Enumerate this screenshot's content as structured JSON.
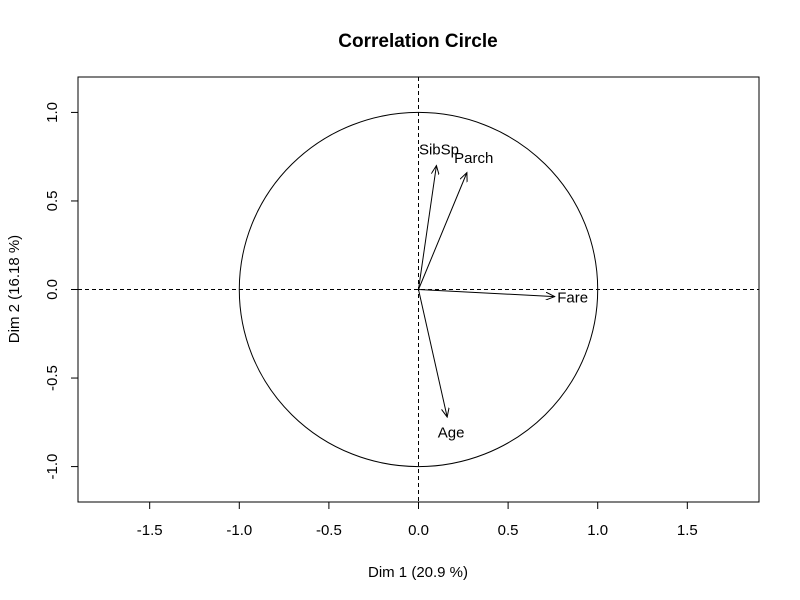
{
  "chart_data": {
    "type": "scatter",
    "title": "Correlation Circle",
    "xlabel": "Dim 1 (20.9 %)",
    "ylabel": "Dim 2 (16.18 %)",
    "xlim": [
      -1.9,
      1.9
    ],
    "ylim": [
      -1.2,
      1.2
    ],
    "xticks": [
      -1.5,
      -1.0,
      -0.5,
      0.0,
      0.5,
      1.0,
      1.5
    ],
    "xtick_labels": [
      "-1.5",
      "-1.0",
      "-0.5",
      "0.0",
      "0.5",
      "1.0",
      "1.5"
    ],
    "yticks": [
      -1.0,
      -0.5,
      0.0,
      0.5,
      1.0
    ],
    "ytick_labels": [
      "-1.0",
      "-0.5",
      "0.0",
      "0.5",
      "1.0"
    ],
    "grid": false,
    "circle_radius": 1.0,
    "reference_lines": [
      0,
      0
    ],
    "variables": [
      {
        "name": "SibSp",
        "x": 0.1,
        "y": 0.7
      },
      {
        "name": "Parch",
        "x": 0.27,
        "y": 0.66
      },
      {
        "name": "Fare",
        "x": 0.76,
        "y": -0.04
      },
      {
        "name": "Age",
        "x": 0.16,
        "y": -0.72
      }
    ]
  }
}
